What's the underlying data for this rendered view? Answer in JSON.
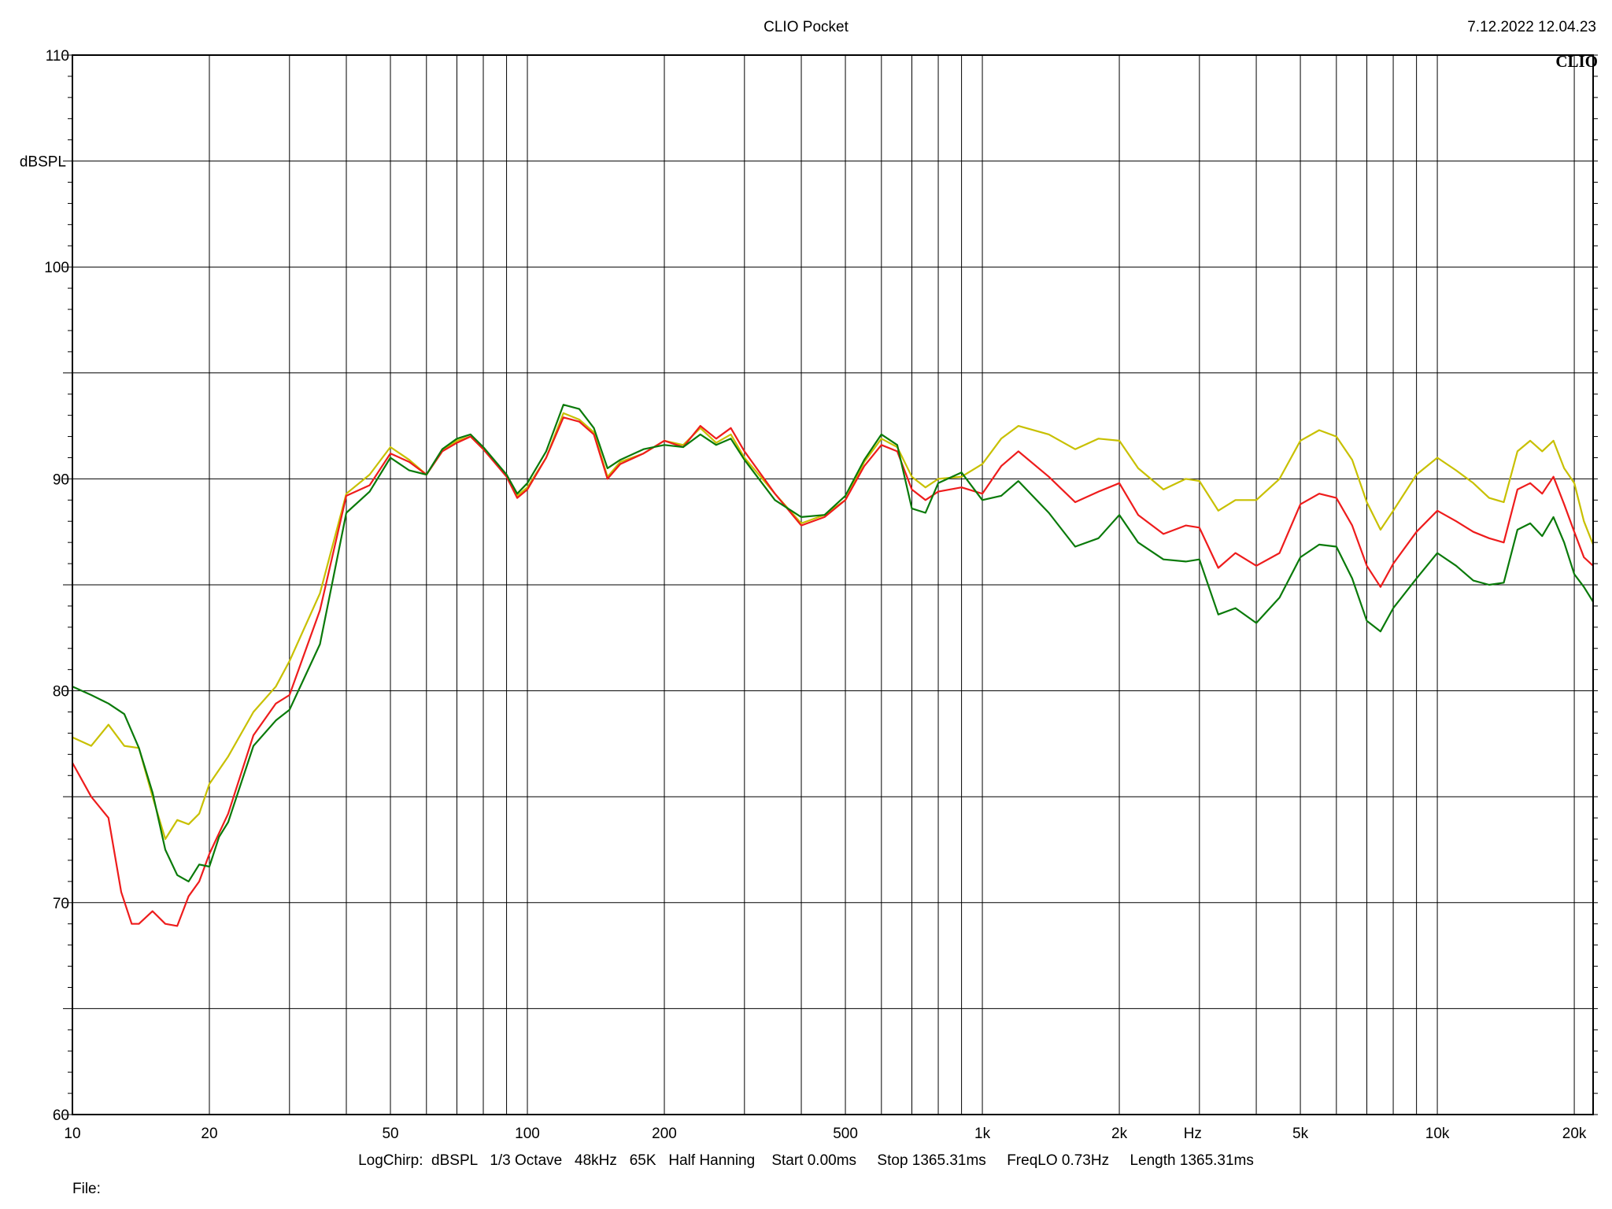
{
  "header": {
    "title": "CLIO Pocket",
    "timestamp": "7.12.2022 12.04.23"
  },
  "brand": "CLIO",
  "footer": {
    "settings": "LogChirp:  dBSPL   1/3 Octave   48kHz   65K   Half Hanning    Start 0.00ms     Stop 1365.31ms     FreqLO 0.73Hz     Length 1365.31ms",
    "file_label": "File:"
  },
  "chart_data": {
    "type": "line",
    "title": "CLIO Pocket",
    "xlabel": "Hz",
    "ylabel": "dBSPL",
    "xscale": "log",
    "xlim": [
      10,
      22000
    ],
    "ylim": [
      60,
      110
    ],
    "grid": true,
    "x_ticks": [
      {
        "value": 10,
        "label": "10"
      },
      {
        "value": 20,
        "label": "20"
      },
      {
        "value": 50,
        "label": "50"
      },
      {
        "value": 100,
        "label": "100"
      },
      {
        "value": 200,
        "label": "200"
      },
      {
        "value": 500,
        "label": "500"
      },
      {
        "value": 1000,
        "label": "1k"
      },
      {
        "value": 2000,
        "label": "2k"
      },
      {
        "value": 5000,
        "label": "5k"
      },
      {
        "value": 10000,
        "label": "10k"
      },
      {
        "value": 20000,
        "label": "20k"
      }
    ],
    "y_ticks": [
      {
        "value": 110,
        "label": "110"
      },
      {
        "value": 100,
        "label": "100"
      },
      {
        "value": 90,
        "label": "90"
      },
      {
        "value": 80,
        "label": "80"
      },
      {
        "value": 70,
        "label": "70"
      },
      {
        "value": 60,
        "label": "60"
      }
    ],
    "series": [
      {
        "color": "#c8c000",
        "points": [
          [
            10,
            77.8
          ],
          [
            11,
            77.4
          ],
          [
            12,
            78.4
          ],
          [
            13,
            77.4
          ],
          [
            14,
            77.3
          ],
          [
            15,
            75.0
          ],
          [
            16,
            73.0
          ],
          [
            17,
            73.9
          ],
          [
            18,
            73.7
          ],
          [
            19,
            74.2
          ],
          [
            20,
            75.6
          ],
          [
            22,
            76.9
          ],
          [
            25,
            79.0
          ],
          [
            28,
            80.2
          ],
          [
            30,
            81.4
          ],
          [
            35,
            84.6
          ],
          [
            40,
            89.3
          ],
          [
            45,
            90.2
          ],
          [
            50,
            91.5
          ],
          [
            55,
            90.9
          ],
          [
            60,
            90.2
          ],
          [
            65,
            91.3
          ],
          [
            70,
            91.8
          ],
          [
            75,
            92.0
          ],
          [
            80,
            91.4
          ],
          [
            90,
            90.2
          ],
          [
            95,
            89.2
          ],
          [
            100,
            89.6
          ],
          [
            110,
            91.0
          ],
          [
            120,
            93.1
          ],
          [
            130,
            92.8
          ],
          [
            140,
            92.2
          ],
          [
            150,
            90.1
          ],
          [
            160,
            90.8
          ],
          [
            180,
            91.2
          ],
          [
            200,
            91.8
          ],
          [
            220,
            91.6
          ],
          [
            240,
            92.4
          ],
          [
            260,
            91.7
          ],
          [
            280,
            92.1
          ],
          [
            300,
            91.0
          ],
          [
            350,
            89.3
          ],
          [
            400,
            87.9
          ],
          [
            450,
            88.3
          ],
          [
            500,
            89.0
          ],
          [
            550,
            90.8
          ],
          [
            600,
            91.9
          ],
          [
            650,
            91.5
          ],
          [
            700,
            90.1
          ],
          [
            750,
            89.6
          ],
          [
            800,
            90.0
          ],
          [
            900,
            90.1
          ],
          [
            1000,
            90.7
          ],
          [
            1100,
            91.9
          ],
          [
            1200,
            92.5
          ],
          [
            1400,
            92.1
          ],
          [
            1600,
            91.4
          ],
          [
            1800,
            91.9
          ],
          [
            2000,
            91.8
          ],
          [
            2200,
            90.5
          ],
          [
            2500,
            89.5
          ],
          [
            2800,
            90.0
          ],
          [
            3000,
            89.9
          ],
          [
            3300,
            88.5
          ],
          [
            3600,
            89.0
          ],
          [
            4000,
            89.0
          ],
          [
            4500,
            90.0
          ],
          [
            5000,
            91.8
          ],
          [
            5500,
            92.3
          ],
          [
            6000,
            92.0
          ],
          [
            6500,
            90.9
          ],
          [
            7000,
            88.9
          ],
          [
            7500,
            87.6
          ],
          [
            8000,
            88.5
          ],
          [
            9000,
            90.2
          ],
          [
            10000,
            91.0
          ],
          [
            11000,
            90.4
          ],
          [
            12000,
            89.8
          ],
          [
            13000,
            89.1
          ],
          [
            14000,
            88.9
          ],
          [
            15000,
            91.3
          ],
          [
            16000,
            91.8
          ],
          [
            17000,
            91.3
          ],
          [
            18000,
            91.8
          ],
          [
            19000,
            90.5
          ],
          [
            20000,
            89.8
          ],
          [
            21000,
            88.0
          ],
          [
            22000,
            86.9
          ]
        ]
      },
      {
        "color": "#ee1c1c",
        "points": [
          [
            10,
            76.6
          ],
          [
            11,
            75.0
          ],
          [
            12,
            74.0
          ],
          [
            12.8,
            70.5
          ],
          [
            13.5,
            69.0
          ],
          [
            14,
            69.0
          ],
          [
            15,
            69.6
          ],
          [
            16,
            69.0
          ],
          [
            17,
            68.9
          ],
          [
            18,
            70.3
          ],
          [
            19,
            71.0
          ],
          [
            20,
            72.3
          ],
          [
            22,
            74.2
          ],
          [
            25,
            77.9
          ],
          [
            28,
            79.4
          ],
          [
            30,
            79.8
          ],
          [
            35,
            83.8
          ],
          [
            40,
            89.2
          ],
          [
            45,
            89.7
          ],
          [
            50,
            91.2
          ],
          [
            55,
            90.8
          ],
          [
            60,
            90.2
          ],
          [
            65,
            91.3
          ],
          [
            70,
            91.7
          ],
          [
            75,
            92.0
          ],
          [
            80,
            91.4
          ],
          [
            90,
            90.1
          ],
          [
            95,
            89.1
          ],
          [
            100,
            89.5
          ],
          [
            110,
            91.0
          ],
          [
            120,
            92.9
          ],
          [
            130,
            92.7
          ],
          [
            140,
            92.1
          ],
          [
            150,
            90.0
          ],
          [
            160,
            90.7
          ],
          [
            180,
            91.2
          ],
          [
            200,
            91.8
          ],
          [
            220,
            91.5
          ],
          [
            240,
            92.5
          ],
          [
            260,
            91.9
          ],
          [
            280,
            92.4
          ],
          [
            300,
            91.3
          ],
          [
            350,
            89.3
          ],
          [
            400,
            87.8
          ],
          [
            450,
            88.2
          ],
          [
            500,
            89.0
          ],
          [
            550,
            90.6
          ],
          [
            600,
            91.6
          ],
          [
            650,
            91.3
          ],
          [
            700,
            89.5
          ],
          [
            750,
            89.0
          ],
          [
            800,
            89.4
          ],
          [
            900,
            89.6
          ],
          [
            1000,
            89.3
          ],
          [
            1100,
            90.6
          ],
          [
            1200,
            91.3
          ],
          [
            1400,
            90.1
          ],
          [
            1600,
            88.9
          ],
          [
            1800,
            89.4
          ],
          [
            2000,
            89.8
          ],
          [
            2200,
            88.3
          ],
          [
            2500,
            87.4
          ],
          [
            2800,
            87.8
          ],
          [
            3000,
            87.7
          ],
          [
            3300,
            85.8
          ],
          [
            3600,
            86.5
          ],
          [
            4000,
            85.9
          ],
          [
            4500,
            86.5
          ],
          [
            5000,
            88.8
          ],
          [
            5500,
            89.3
          ],
          [
            6000,
            89.1
          ],
          [
            6500,
            87.8
          ],
          [
            7000,
            85.9
          ],
          [
            7500,
            84.9
          ],
          [
            8000,
            86.0
          ],
          [
            9000,
            87.5
          ],
          [
            10000,
            88.5
          ],
          [
            11000,
            88.0
          ],
          [
            12000,
            87.5
          ],
          [
            13000,
            87.2
          ],
          [
            14000,
            87.0
          ],
          [
            15000,
            89.5
          ],
          [
            16000,
            89.8
          ],
          [
            17000,
            89.3
          ],
          [
            18000,
            90.1
          ],
          [
            19000,
            88.8
          ],
          [
            20000,
            87.5
          ],
          [
            21000,
            86.3
          ],
          [
            22000,
            85.9
          ]
        ]
      },
      {
        "color": "#0a7a0a",
        "points": [
          [
            10,
            80.2
          ],
          [
            11,
            79.8
          ],
          [
            12,
            79.4
          ],
          [
            13,
            78.9
          ],
          [
            14,
            77.3
          ],
          [
            15,
            75.2
          ],
          [
            16,
            72.5
          ],
          [
            17,
            71.3
          ],
          [
            18,
            71.0
          ],
          [
            19,
            71.8
          ],
          [
            20,
            71.7
          ],
          [
            21,
            73.1
          ],
          [
            22,
            73.8
          ],
          [
            25,
            77.4
          ],
          [
            28,
            78.6
          ],
          [
            30,
            79.1
          ],
          [
            35,
            82.2
          ],
          [
            40,
            88.4
          ],
          [
            45,
            89.4
          ],
          [
            50,
            91.0
          ],
          [
            55,
            90.4
          ],
          [
            60,
            90.2
          ],
          [
            65,
            91.4
          ],
          [
            70,
            91.9
          ],
          [
            75,
            92.1
          ],
          [
            80,
            91.5
          ],
          [
            90,
            90.2
          ],
          [
            95,
            89.3
          ],
          [
            100,
            89.8
          ],
          [
            110,
            91.3
          ],
          [
            120,
            93.5
          ],
          [
            130,
            93.3
          ],
          [
            140,
            92.4
          ],
          [
            150,
            90.5
          ],
          [
            160,
            90.9
          ],
          [
            180,
            91.4
          ],
          [
            200,
            91.6
          ],
          [
            220,
            91.5
          ],
          [
            240,
            92.1
          ],
          [
            260,
            91.6
          ],
          [
            280,
            91.9
          ],
          [
            300,
            90.9
          ],
          [
            350,
            89.0
          ],
          [
            400,
            88.2
          ],
          [
            450,
            88.3
          ],
          [
            500,
            89.2
          ],
          [
            550,
            90.9
          ],
          [
            600,
            92.1
          ],
          [
            650,
            91.6
          ],
          [
            700,
            88.6
          ],
          [
            750,
            88.4
          ],
          [
            800,
            89.8
          ],
          [
            900,
            90.3
          ],
          [
            1000,
            89.0
          ],
          [
            1100,
            89.2
          ],
          [
            1200,
            89.9
          ],
          [
            1400,
            88.4
          ],
          [
            1600,
            86.8
          ],
          [
            1800,
            87.2
          ],
          [
            2000,
            88.3
          ],
          [
            2200,
            87.0
          ],
          [
            2500,
            86.2
          ],
          [
            2800,
            86.1
          ],
          [
            3000,
            86.2
          ],
          [
            3300,
            83.6
          ],
          [
            3600,
            83.9
          ],
          [
            4000,
            83.2
          ],
          [
            4500,
            84.4
          ],
          [
            5000,
            86.3
          ],
          [
            5500,
            86.9
          ],
          [
            6000,
            86.8
          ],
          [
            6500,
            85.3
          ],
          [
            7000,
            83.3
          ],
          [
            7500,
            82.8
          ],
          [
            8000,
            83.9
          ],
          [
            9000,
            85.3
          ],
          [
            10000,
            86.5
          ],
          [
            11000,
            85.9
          ],
          [
            12000,
            85.2
          ],
          [
            13000,
            85.0
          ],
          [
            14000,
            85.1
          ],
          [
            15000,
            87.6
          ],
          [
            16000,
            87.9
          ],
          [
            17000,
            87.3
          ],
          [
            18000,
            88.2
          ],
          [
            19000,
            87.0
          ],
          [
            20000,
            85.5
          ],
          [
            21000,
            84.9
          ],
          [
            22000,
            84.2
          ]
        ]
      }
    ]
  }
}
